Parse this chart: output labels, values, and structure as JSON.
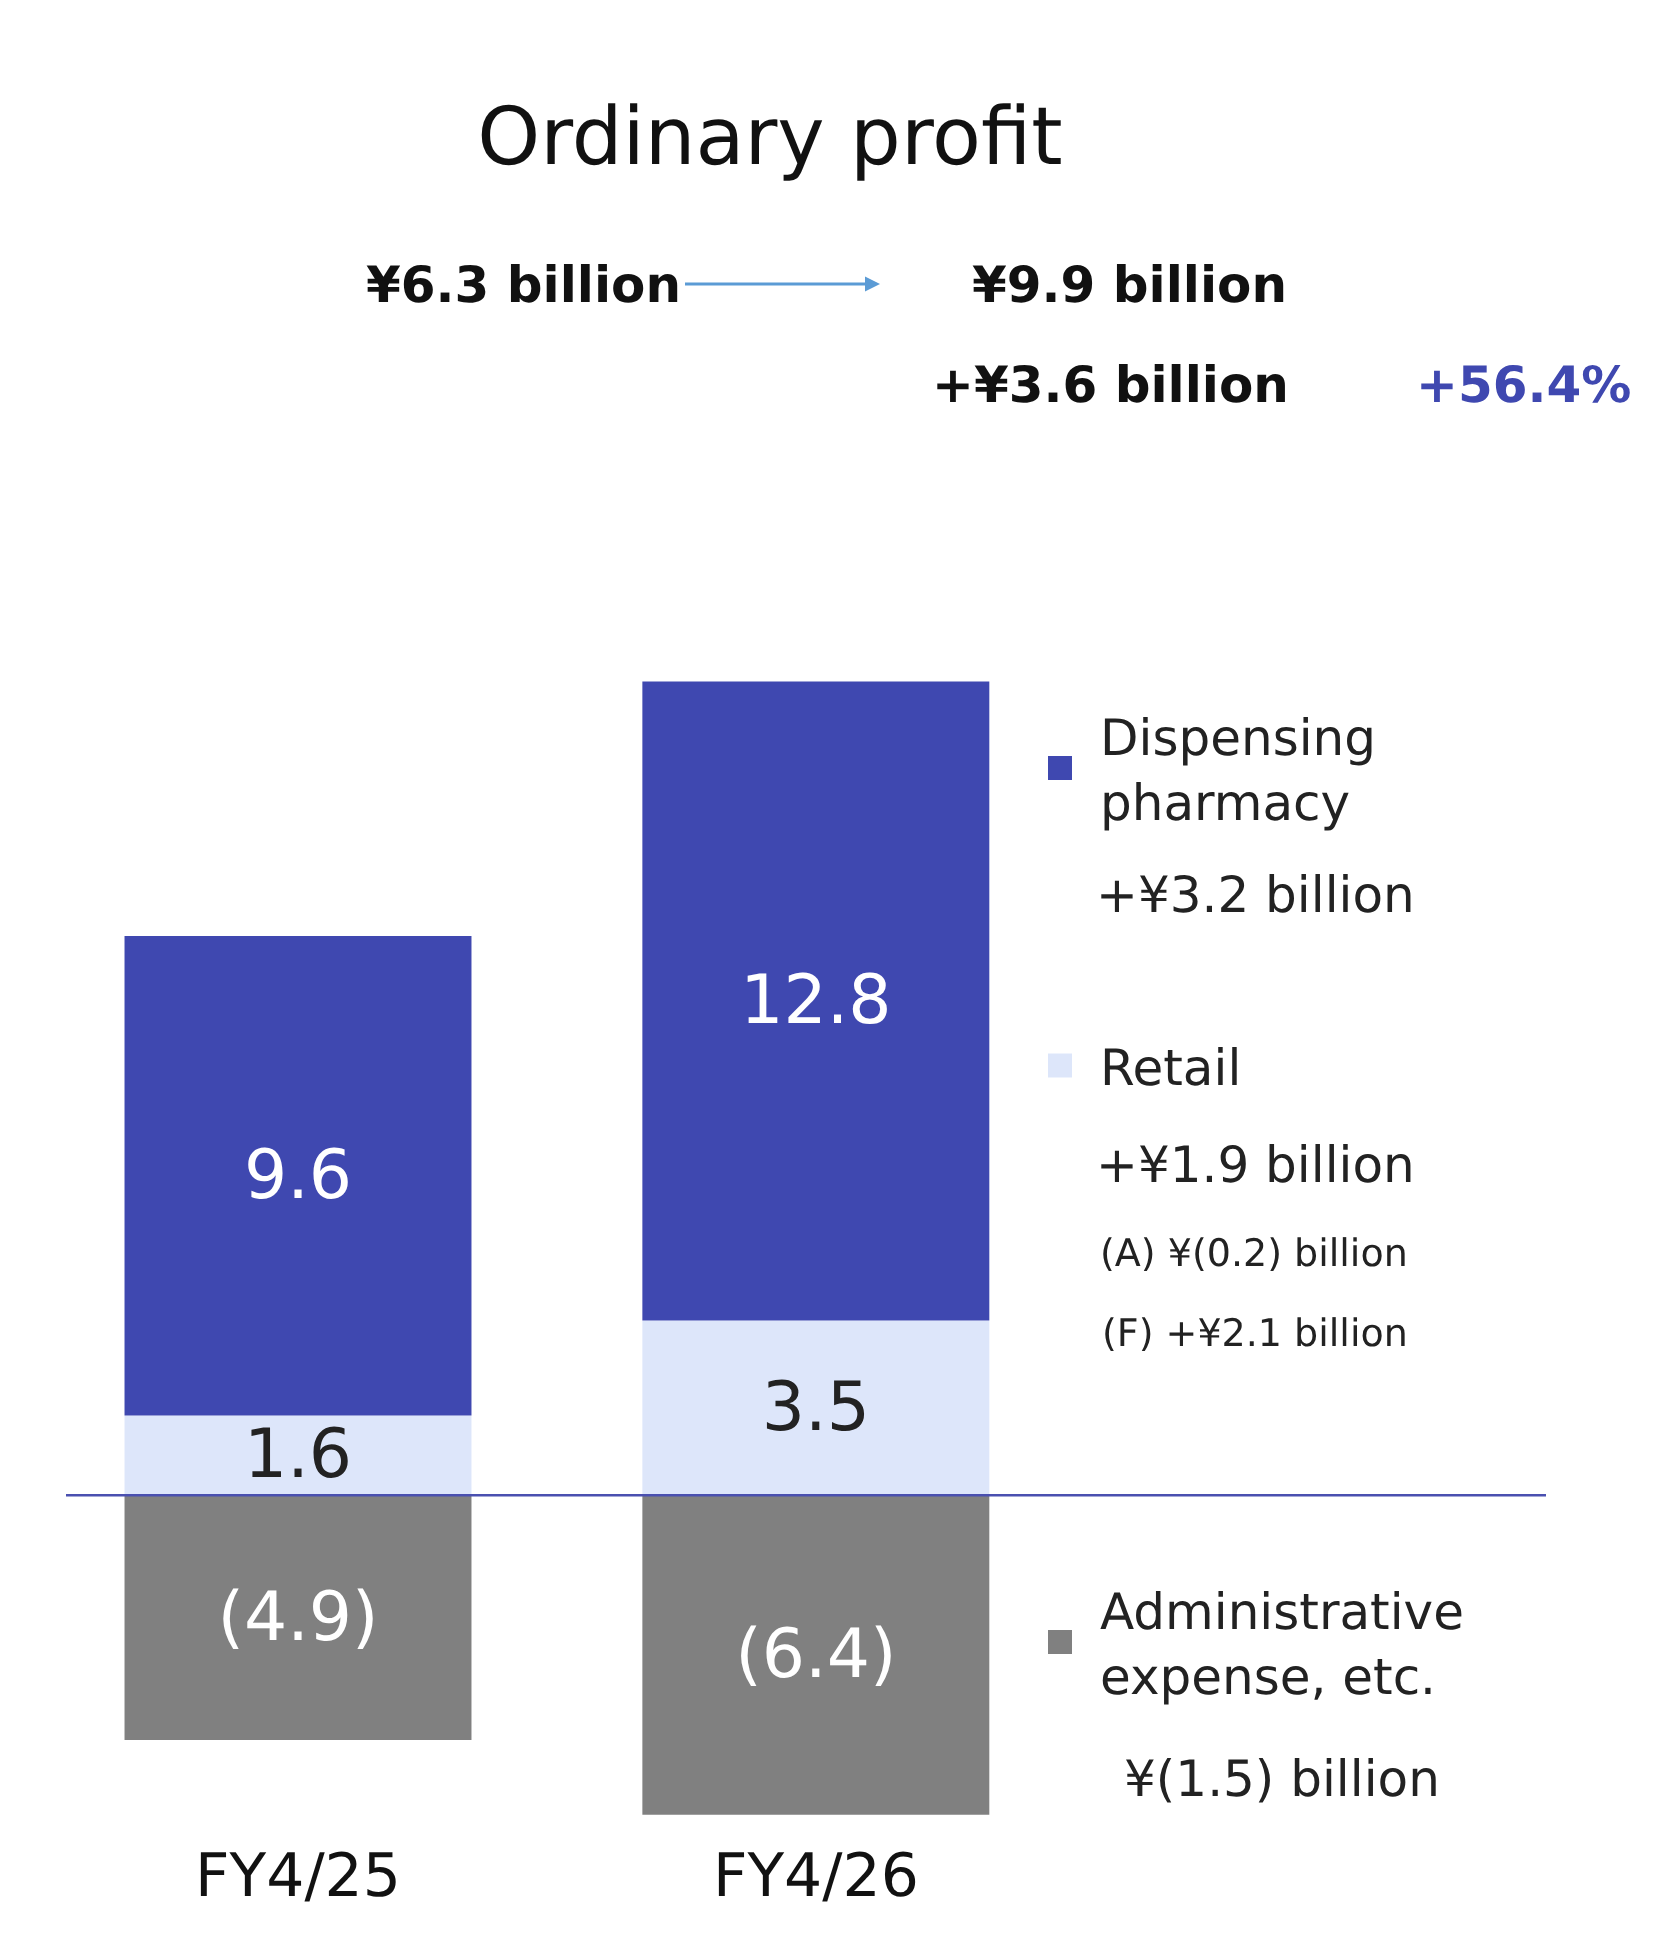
{
  "chart_data": {
    "type": "bar",
    "stacked": true,
    "title": "Ordinary profit",
    "categories": [
      "FY4/25",
      "FY4/26"
    ],
    "series": [
      {
        "name": "Retail",
        "color": "#dde6fa",
        "values": [
          1.6,
          3.5
        ],
        "value_labels": [
          "1.6",
          "3.5"
        ]
      },
      {
        "name": "Dispensing pharmacy",
        "color": "#3f48b0",
        "values": [
          9.6,
          12.8
        ],
        "value_labels": [
          "9.6",
          "12.8"
        ]
      },
      {
        "name": "Administrative expense, etc.",
        "color": "#808080",
        "values": [
          -4.9,
          -6.4
        ],
        "value_labels": [
          "(4.9)",
          "(6.4)"
        ]
      }
    ],
    "annotations": [
      "¥6.3 billion",
      "¥9.9 billion",
      "+¥3.6 billion",
      "+56.4%",
      "+¥3.2 billion",
      "+¥1.9 billion",
      "(A) ¥(0.2) billion",
      "(F) +¥2.1 billion",
      "¥(1.5) billion"
    ],
    "ref_lines": [
      {
        "axis": "y",
        "value": 0,
        "color": "#4a50b0"
      }
    ],
    "legend": "right",
    "tick_labels": "x"
  }
}
